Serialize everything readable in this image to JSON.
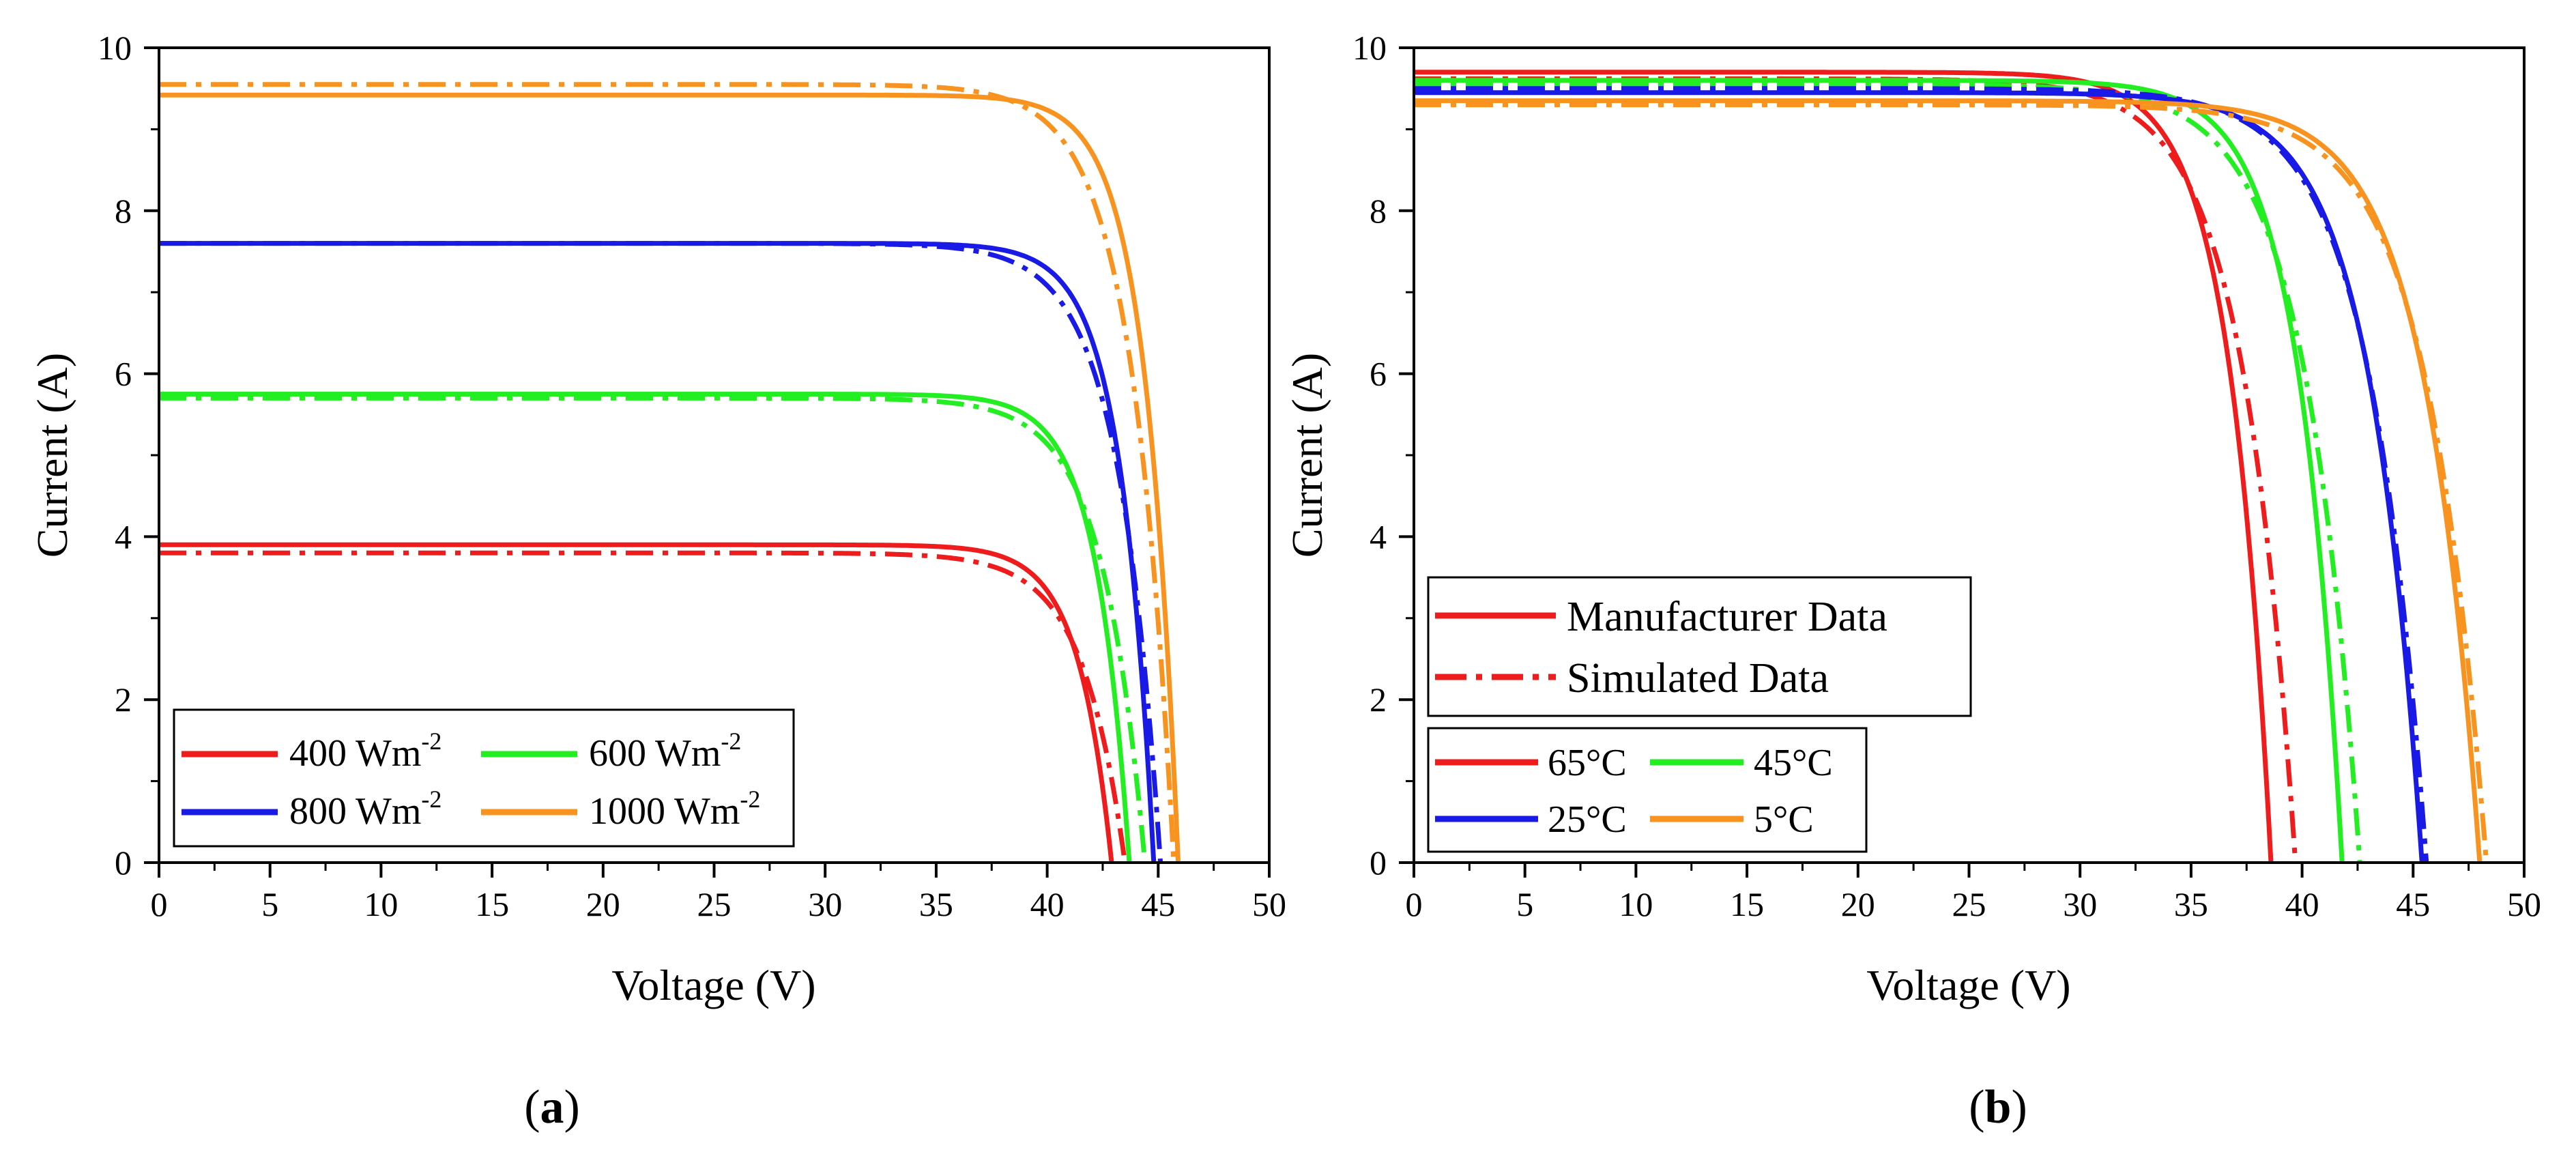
{
  "chart_data": [
    {
      "panel_label": "a",
      "type": "line",
      "xlabel": "Voltage (V)",
      "ylabel": "Current (A)",
      "xlim": [
        0,
        50
      ],
      "ylim": [
        0,
        10
      ],
      "x_ticks": [
        "0",
        "5",
        "10",
        "15",
        "20",
        "25",
        "30",
        "35",
        "40",
        "45",
        "50"
      ],
      "y_ticks": [
        "0",
        "2",
        "4",
        "6",
        "8",
        "10"
      ],
      "legend": {
        "placement": "bottom-left",
        "entries": [
          {
            "base": "400 Wm",
            "sup": "-2",
            "color": "#ee1c1c"
          },
          {
            "base": "600 Wm",
            "sup": "-2",
            "color": "#22ee22"
          },
          {
            "base": "800 Wm",
            "sup": "-2",
            "color": "#1a1ae6"
          },
          {
            "base": "1000 Wm",
            "sup": "-2",
            "color": "#f7931e"
          }
        ]
      },
      "series": [
        {
          "color": "#ee1c1c",
          "style": "solid",
          "isc": 3.9,
          "voc": 42.9,
          "a": 1.5
        },
        {
          "color": "#ee1c1c",
          "style": "dashdot",
          "isc": 3.8,
          "voc": 43.5,
          "a": 1.9
        },
        {
          "color": "#22ee22",
          "style": "solid",
          "isc": 5.75,
          "voc": 43.7,
          "a": 1.5
        },
        {
          "color": "#22ee22",
          "style": "dashdot",
          "isc": 5.7,
          "voc": 44.4,
          "a": 1.9
        },
        {
          "color": "#1a1ae6",
          "style": "solid",
          "isc": 7.6,
          "voc": 44.8,
          "a": 1.5
        },
        {
          "color": "#1a1ae6",
          "style": "dashdot",
          "isc": 7.6,
          "voc": 45.1,
          "a": 1.9
        },
        {
          "color": "#f7931e",
          "style": "solid",
          "isc": 9.42,
          "voc": 45.9,
          "a": 1.5
        },
        {
          "color": "#f7931e",
          "style": "dashdot",
          "isc": 9.55,
          "voc": 45.7,
          "a": 1.9
        }
      ]
    },
    {
      "panel_label": "b",
      "type": "line",
      "xlabel": "Voltage (V)",
      "ylabel": "Current (A)",
      "xlim": [
        0,
        50
      ],
      "ylim": [
        0,
        10
      ],
      "x_ticks": [
        "0",
        "5",
        "10",
        "15",
        "20",
        "25",
        "30",
        "35",
        "40",
        "45",
        "50"
      ],
      "y_ticks": [
        "0",
        "2",
        "4",
        "6",
        "8",
        "10"
      ],
      "legend_style": {
        "placement": "middle-left",
        "entries": [
          {
            "label": "Manufacturer Data",
            "style": "solid",
            "color": "#ee1c1c"
          },
          {
            "label": "Simulated Data",
            "style": "dashdot",
            "color": "#ee1c1c"
          }
        ]
      },
      "legend_temp": {
        "placement": "bottom-left",
        "entries": [
          {
            "label": "65°C",
            "color": "#ee1c1c"
          },
          {
            "label": "45°C",
            "color": "#22ee22"
          },
          {
            "label": "25°C",
            "color": "#1a1ae6"
          },
          {
            "label": "5°C",
            "color": "#f7931e"
          }
        ]
      },
      "series": [
        {
          "color": "#ee1c1c",
          "style": "solid",
          "isc": 9.7,
          "voc": 38.6,
          "a": 1.9
        },
        {
          "color": "#ee1c1c",
          "style": "dashdot",
          "isc": 9.62,
          "voc": 39.7,
          "a": 2.4
        },
        {
          "color": "#22ee22",
          "style": "solid",
          "isc": 9.6,
          "voc": 41.8,
          "a": 2.0
        },
        {
          "color": "#22ee22",
          "style": "dashdot",
          "isc": 9.55,
          "voc": 42.6,
          "a": 2.5
        },
        {
          "color": "#1a1ae6",
          "style": "solid",
          "isc": 9.45,
          "voc": 45.4,
          "a": 2.4
        },
        {
          "color": "#1a1ae6",
          "style": "dashdot",
          "isc": 9.5,
          "voc": 45.6,
          "a": 2.6
        },
        {
          "color": "#f7931e",
          "style": "solid",
          "isc": 9.35,
          "voc": 48.0,
          "a": 2.5
        },
        {
          "color": "#f7931e",
          "style": "dashdot",
          "isc": 9.3,
          "voc": 48.3,
          "a": 2.7
        }
      ]
    }
  ]
}
